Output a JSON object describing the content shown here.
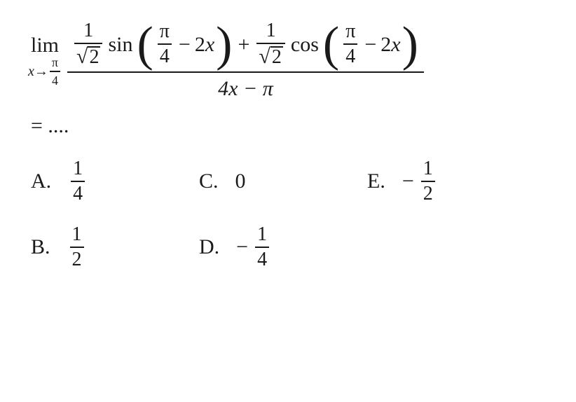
{
  "colors": {
    "text": "#1a1a1a",
    "background": "#ffffff",
    "rule": "#1a1a1a"
  },
  "typography": {
    "family": "Times New Roman",
    "base_size_pt": 30,
    "sub_size_pt": 20
  },
  "expression": {
    "lim": "lim",
    "lim_var": "x",
    "lim_arrow": "→",
    "lim_target_num": "π",
    "lim_target_den": "4",
    "coef_num": "1",
    "coef_sqrt_arg": "2",
    "fn_sin": "sin",
    "fn_cos": "cos",
    "inner_frac_num": "π",
    "inner_frac_den": "4",
    "inner_minus": "−",
    "inner_term": "2x",
    "plus": "+",
    "den_term": "4x − π",
    "equals_line": "= ...."
  },
  "options": {
    "A": {
      "label": "A.",
      "num": "1",
      "den": "4",
      "neg": false,
      "plain": null
    },
    "B": {
      "label": "B.",
      "num": "1",
      "den": "2",
      "neg": false,
      "plain": null
    },
    "C": {
      "label": "C.",
      "num": null,
      "den": null,
      "neg": false,
      "plain": "0"
    },
    "D": {
      "label": "D.",
      "num": "1",
      "den": "4",
      "neg": true,
      "plain": null
    },
    "E": {
      "label": "E.",
      "num": "1",
      "den": "2",
      "neg": true,
      "plain": null
    }
  }
}
